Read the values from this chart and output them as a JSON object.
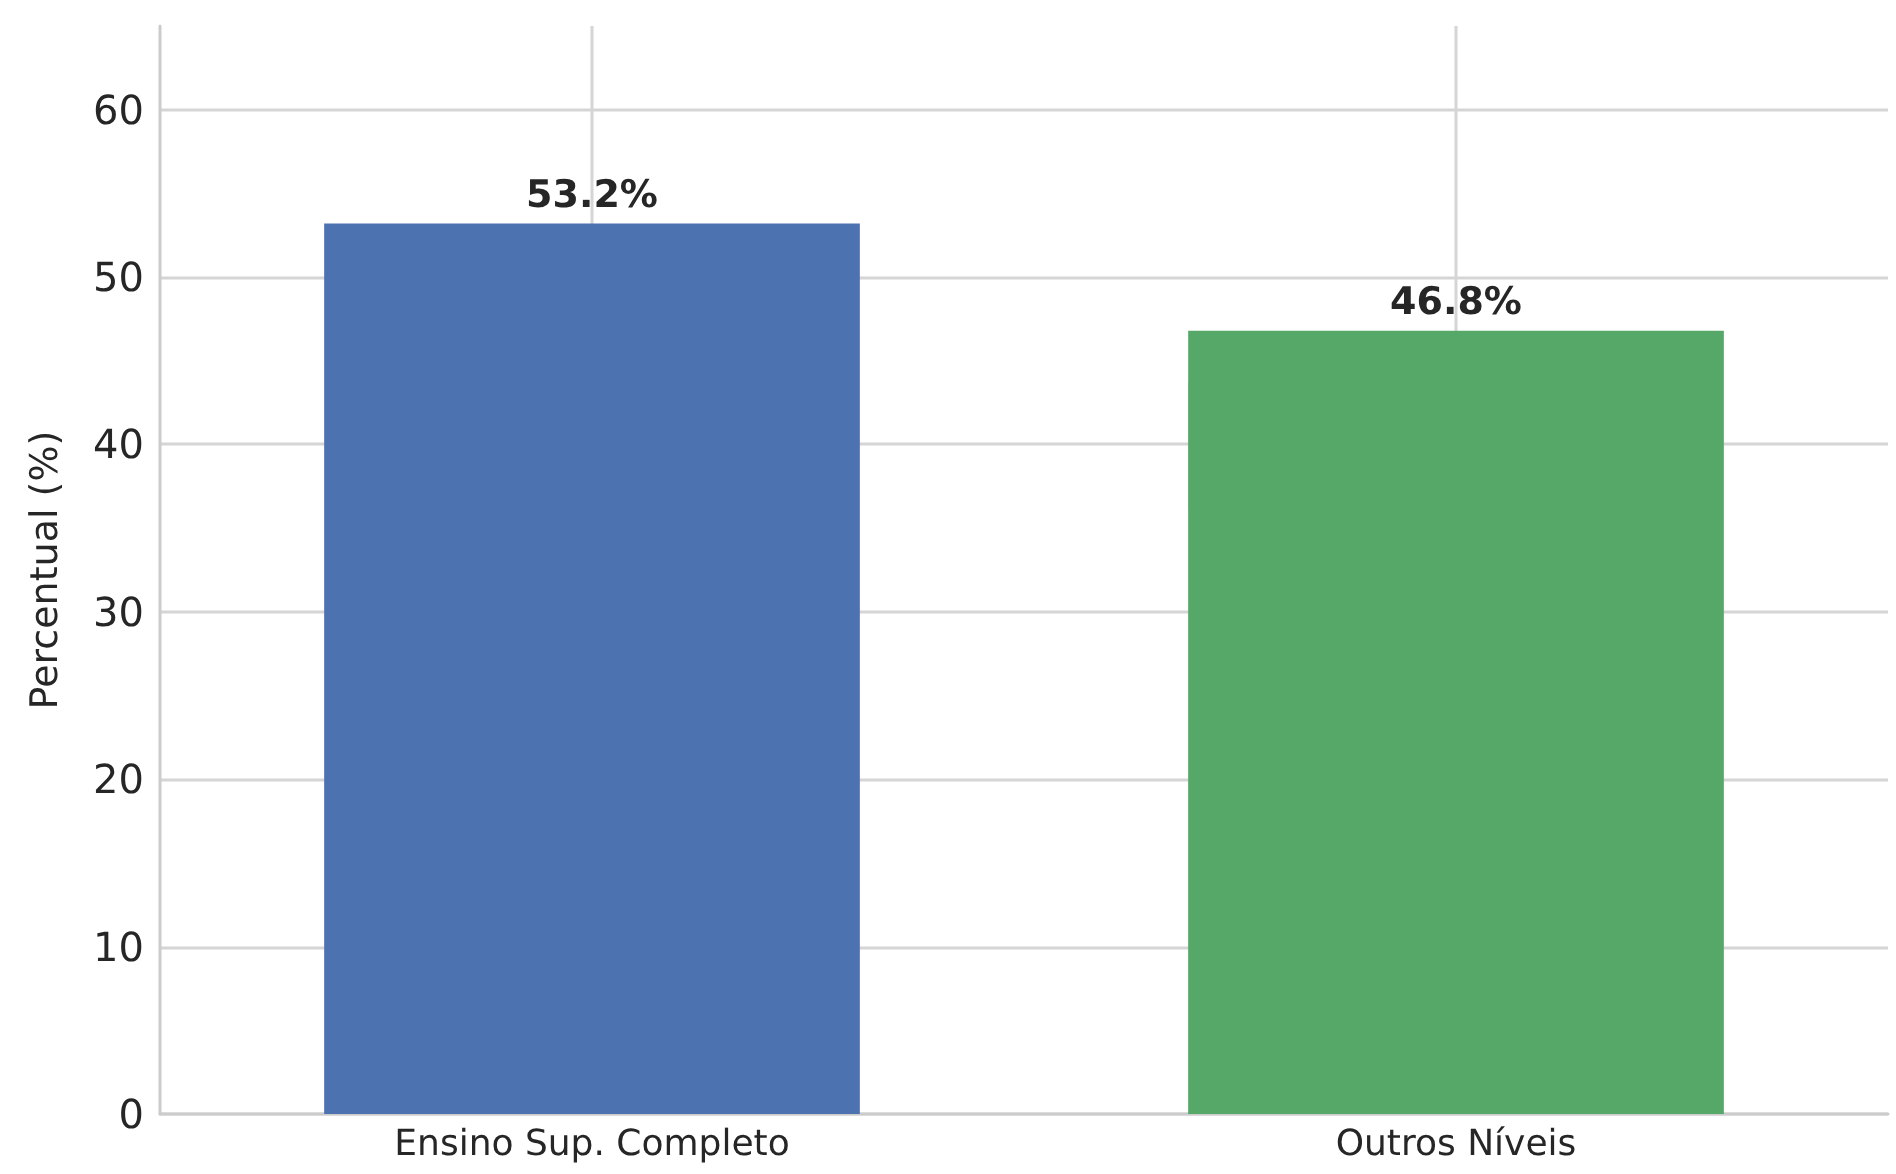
{
  "chart_data": {
    "type": "bar",
    "ylabel": "Percentual (%)",
    "categories": [
      "Ensino Sup. Completo",
      "Outros Níveis"
    ],
    "values": [
      53.2,
      46.8
    ],
    "colors": [
      "#4c72b0",
      "#55a868"
    ],
    "value_labels": [
      "53.2%",
      "46.8%"
    ],
    "ylim": [
      0,
      65
    ],
    "yticks": [
      0,
      10,
      20,
      30,
      40,
      50,
      60
    ],
    "grid": true
  }
}
